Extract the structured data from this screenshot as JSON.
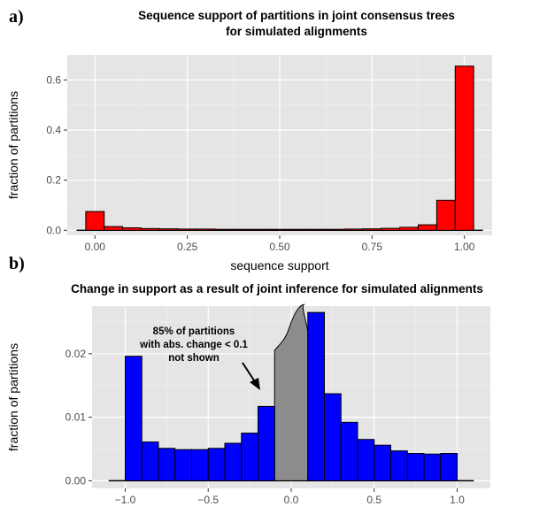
{
  "chart_data": [
    {
      "type": "bar",
      "panel_label": "a)",
      "title_lines": [
        "Sequence support of partitions in joint consensus trees",
        "for simulated alignments"
      ],
      "xlabel": "sequence support",
      "ylabel": "fraction of partitions",
      "xlim": [
        -0.075,
        1.075
      ],
      "ylim": [
        -0.02,
        0.7
      ],
      "x_ticks": [
        0.0,
        0.25,
        0.5,
        0.75,
        1.0
      ],
      "x_tick_labels": [
        "0.00",
        "0.25",
        "0.50",
        "0.75",
        "1.00"
      ],
      "y_ticks": [
        0.0,
        0.2,
        0.4,
        0.6
      ],
      "y_tick_labels": [
        "0.0",
        "0.2",
        "0.4",
        "0.6"
      ],
      "bin_width": 0.05,
      "bin_centers": [
        0.0,
        0.05,
        0.1,
        0.15,
        0.2,
        0.25,
        0.3,
        0.35,
        0.4,
        0.45,
        0.5,
        0.55,
        0.6,
        0.65,
        0.7,
        0.75,
        0.8,
        0.85,
        0.9,
        0.95,
        1.0
      ],
      "values": [
        0.075,
        0.015,
        0.01,
        0.007,
        0.006,
        0.005,
        0.005,
        0.004,
        0.004,
        0.004,
        0.004,
        0.004,
        0.004,
        0.004,
        0.005,
        0.006,
        0.008,
        0.012,
        0.022,
        0.12,
        0.655
      ],
      "baseline_range": [
        -0.05,
        1.05
      ],
      "colors": {
        "bar": "#ff0000",
        "panel": "#e5e5e5",
        "grid_major": "#ffffff",
        "grid_minor": "#f2f2f2"
      },
      "grid": true
    },
    {
      "type": "bar",
      "panel_label": "b)",
      "title_lines": [
        "Change in support as a result of joint inference for simulated alignments"
      ],
      "xlabel": "",
      "ylabel": "fraction of partitions",
      "xlim": [
        -1.2,
        1.2
      ],
      "ylim": [
        -0.0012,
        0.0275
      ],
      "x_ticks": [
        -1.0,
        -0.5,
        0.0,
        0.5,
        1.0
      ],
      "x_tick_labels": [
        "−1.0",
        "−0.5",
        "0.0",
        "0.5",
        "1.0"
      ],
      "y_ticks": [
        0.0,
        0.01,
        0.02
      ],
      "y_tick_labels": [
        "0.00",
        "0.01",
        "0.02"
      ],
      "bin_width": 0.1,
      "bin_centers": [
        -0.95,
        -0.85,
        -0.75,
        -0.65,
        -0.55,
        -0.45,
        -0.35,
        -0.25,
        -0.15,
        0.15,
        0.25,
        0.35,
        0.45,
        0.55,
        0.65,
        0.75,
        0.85,
        0.95
      ],
      "values": [
        0.0196,
        0.0061,
        0.0051,
        0.0049,
        0.0049,
        0.0051,
        0.0059,
        0.0075,
        0.0117,
        0.0265,
        0.0137,
        0.0092,
        0.0065,
        0.0056,
        0.0047,
        0.0043,
        0.0042,
        0.0043
      ],
      "hidden_range": [
        -0.1,
        0.1
      ],
      "baseline_range": [
        -1.1,
        1.1
      ],
      "annotation_lines": [
        "85%  of partitions",
        "with abs. change < 0.1",
        "not shown"
      ],
      "colors": {
        "bar": "#0000ff",
        "hidden": "#8c8c8c",
        "panel": "#e5e5e5",
        "grid_major": "#ffffff",
        "grid_minor": "#f2f2f2"
      },
      "grid": true
    }
  ]
}
